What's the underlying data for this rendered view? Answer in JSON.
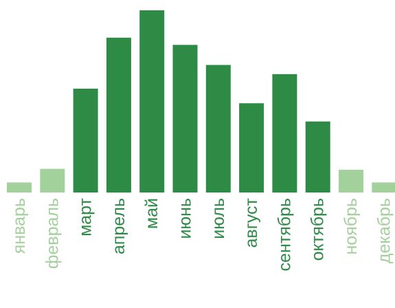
{
  "chart_data": {
    "type": "bar",
    "title": "",
    "xlabel": "",
    "ylabel": "",
    "grid": false,
    "legend": "none",
    "categories": [
      "январь",
      "февраль",
      "март",
      "апрель",
      "май",
      "июнь",
      "июль",
      "август",
      "сентябрь",
      "октябрь",
      "ноябрь",
      "декабрь"
    ],
    "values": [
      5.5,
      13,
      57,
      85,
      100,
      81,
      70,
      49,
      65,
      39,
      12.5,
      5.5
    ],
    "ylim": [
      0,
      100
    ],
    "highlight": [
      false,
      false,
      true,
      true,
      true,
      true,
      true,
      true,
      true,
      true,
      false,
      false
    ],
    "colors": {
      "highlight": "#2e8b46",
      "muted": "#a3d19c"
    }
  }
}
